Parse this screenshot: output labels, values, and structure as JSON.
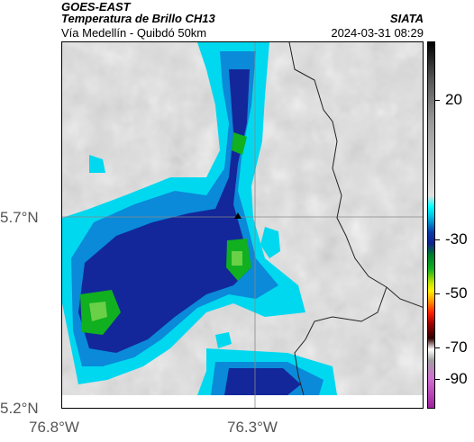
{
  "header": {
    "source": "GOES-EAST",
    "product": "Temperatura de Brillo CH13",
    "route": "Vía Medellín - Quibdó 50km",
    "org": "SIATA",
    "timestamp": "2024-03-31 08:29"
  },
  "axes": {
    "y_labels": [
      "5.7°N",
      "5.2°N"
    ],
    "x_labels": [
      "76.8°W",
      "76.3°W"
    ]
  },
  "colorbar": {
    "labels": [
      "20",
      "-30",
      "-50",
      "-70",
      "-90"
    ]
  },
  "colors": {
    "cold_cloud_blue": "#0a3aa8",
    "cyan": "#00ffff",
    "green": "#10b020",
    "background_gray": "#d9d9d9"
  }
}
